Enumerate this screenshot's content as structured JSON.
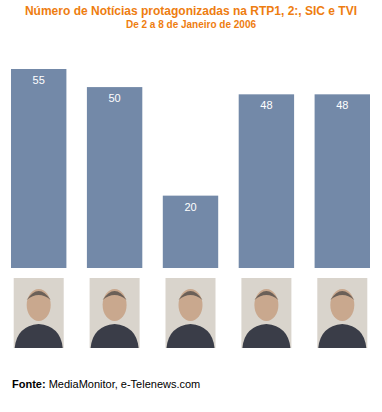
{
  "chart_data": {
    "type": "bar",
    "title": "Número de Notícias protagonizadas na RTP1, 2:, SIC e TVI",
    "subtitle": "De 2 a 8 de Janeiro de 2006",
    "categories": [
      null,
      null,
      null,
      null,
      null
    ],
    "values": [
      55,
      50,
      20,
      48,
      48
    ],
    "color": "#7389a8",
    "ylim": [
      0,
      55
    ],
    "tick_labels": false,
    "grid": false,
    "data_labels": true,
    "annotations": [
      "Fonte:",
      "MediaMonitor, e-Telenews.com"
    ]
  }
}
